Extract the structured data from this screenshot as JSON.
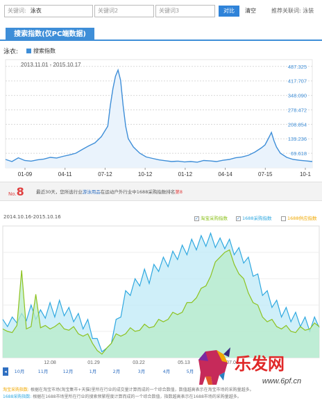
{
  "search": {
    "kw1_label": "关键词:",
    "kw1_value": "泳衣",
    "kw2_label": "关键词2",
    "kw3_label": "关键词3",
    "compare_label": "对比",
    "clear_label": "清空",
    "recommended_label": "推荐关联词:",
    "recommended_value": "泳装"
  },
  "section": {
    "title": "搜索指数(仅PC端数据)"
  },
  "chart1_header": {
    "keyword": "泳衣:",
    "legend": "搜索指数"
  },
  "ranking": {
    "no_label": "No.",
    "no_value": "8",
    "text_pre": "最近30天，您所选行业",
    "category": "游泳用品",
    "text_mid": "在运动户外行业中1688采购指数排名",
    "rank_word": "第8"
  },
  "chart2_header": {
    "date_range": "2014.10.16-2015.10.16",
    "legend": [
      {
        "label": "淘宝采购指数",
        "checked": true,
        "color": "#8dc21f"
      },
      {
        "label": "1688采购指数",
        "checked": true,
        "color": "#2fa8e0"
      },
      {
        "label": "1688供应指数",
        "checked": false,
        "color": "#f0a800"
      }
    ]
  },
  "monthnav": {
    "items": [
      "10月",
      "11月",
      "12月",
      "1月",
      "2月",
      "3月",
      "4月",
      "5月"
    ]
  },
  "notes": {
    "n1_key": "淘宝采购指数:",
    "n1_text": "根据在淘宝市场(淘宝集市+天猫)里所在行业的成交量计算而成的一个综合数值，数值越高表示在淘宝市场的采购量越多。",
    "n2_key": "1688采购指数:",
    "n2_text": "根据在1688市场里所在行业的搜索频繁程度计算而成的一个综合数值，指数越高表示在1688市场的采购量越多。"
  },
  "watermark": {
    "text": "乐发网",
    "url": "www.6pf.cn"
  },
  "chart_data": [
    {
      "type": "line",
      "title": "",
      "date_range_label": "2013.11.01 - 2015.10.17",
      "series": [
        {
          "name": "搜索指数",
          "color": "#3e8ed8"
        }
      ],
      "x_ticks": [
        "01-09",
        "04-11",
        "07-12",
        "10-12",
        "01-12",
        "04-14",
        "07-15",
        "10-1"
      ],
      "y_ticks": [
        69.618,
        139.236,
        208.854,
        278.472,
        348.09,
        417.707,
        487.325
      ],
      "y_tick_labels": [
        "69.618",
        "139.236",
        "208.854",
        "278.472",
        "348.090",
        "417.707",
        "487.325"
      ],
      "ylim": [
        0,
        520
      ],
      "points": [
        [
          0,
          40
        ],
        [
          5,
          30
        ],
        [
          10,
          48
        ],
        [
          15,
          35
        ],
        [
          20,
          32
        ],
        [
          25,
          38
        ],
        [
          30,
          42
        ],
        [
          35,
          50
        ],
        [
          40,
          47
        ],
        [
          45,
          55
        ],
        [
          50,
          62
        ],
        [
          55,
          70
        ],
        [
          60,
          88
        ],
        [
          65,
          105
        ],
        [
          70,
          120
        ],
        [
          75,
          150
        ],
        [
          80,
          200
        ],
        [
          82,
          300
        ],
        [
          84,
          380
        ],
        [
          86,
          440
        ],
        [
          88,
          470
        ],
        [
          90,
          420
        ],
        [
          92,
          300
        ],
        [
          94,
          200
        ],
        [
          96,
          140
        ],
        [
          100,
          100
        ],
        [
          105,
          70
        ],
        [
          110,
          52
        ],
        [
          115,
          45
        ],
        [
          120,
          38
        ],
        [
          125,
          34
        ],
        [
          130,
          30
        ],
        [
          135,
          32
        ],
        [
          140,
          28
        ],
        [
          145,
          30
        ],
        [
          150,
          27
        ],
        [
          155,
          35
        ],
        [
          160,
          33
        ],
        [
          165,
          30
        ],
        [
          170,
          36
        ],
        [
          175,
          40
        ],
        [
          180,
          48
        ],
        [
          185,
          52
        ],
        [
          190,
          60
        ],
        [
          195,
          75
        ],
        [
          200,
          95
        ],
        [
          203,
          110
        ],
        [
          206,
          145
        ],
        [
          208,
          170
        ],
        [
          210,
          130
        ],
        [
          212,
          100
        ],
        [
          215,
          70
        ],
        [
          220,
          50
        ],
        [
          225,
          40
        ],
        [
          230,
          36
        ],
        [
          235,
          33
        ],
        [
          240,
          30
        ]
      ],
      "x_max": 240
    },
    {
      "type": "area",
      "title": "",
      "x_ticks": [
        "12.08",
        "01.29",
        "03.22",
        "05.13",
        "07.04"
      ],
      "series": [
        {
          "name": "1688采购指数",
          "color": "#2fa8e0",
          "fill": "#bfe9f7",
          "values": [
            28,
            32,
            30,
            35,
            33,
            37,
            40,
            38,
            36,
            39,
            42,
            40,
            44,
            41,
            38,
            36,
            33,
            30,
            28,
            22,
            12,
            5,
            8,
            18,
            28,
            40,
            52,
            58,
            62,
            66,
            70,
            68,
            74,
            78,
            80,
            82,
            85,
            88,
            90,
            92,
            95,
            96,
            98,
            99,
            100,
            98,
            96,
            97,
            95,
            92,
            88,
            85,
            80,
            74,
            66,
            58,
            52,
            48,
            44,
            40,
            38,
            36,
            34,
            32,
            30,
            28,
            30,
            31
          ]
        },
        {
          "name": "淘宝采购指数",
          "color": "#8dc21f",
          "fill": "#b8ecc8",
          "values": [
            22,
            24,
            23,
            25,
            75,
            26,
            24,
            55,
            27,
            25,
            26,
            28,
            27,
            26,
            25,
            24,
            22,
            20,
            18,
            14,
            6,
            3,
            8,
            14,
            18,
            20,
            22,
            23,
            24,
            25,
            26,
            27,
            28,
            30,
            32,
            34,
            36,
            38,
            40,
            44,
            48,
            52,
            56,
            62,
            70,
            78,
            86,
            90,
            88,
            80,
            72,
            64,
            56,
            48,
            42,
            36,
            32,
            30,
            28,
            26,
            25,
            24,
            23,
            24,
            25,
            26,
            27,
            28
          ]
        }
      ],
      "ylim": [
        0,
        110
      ]
    }
  ]
}
